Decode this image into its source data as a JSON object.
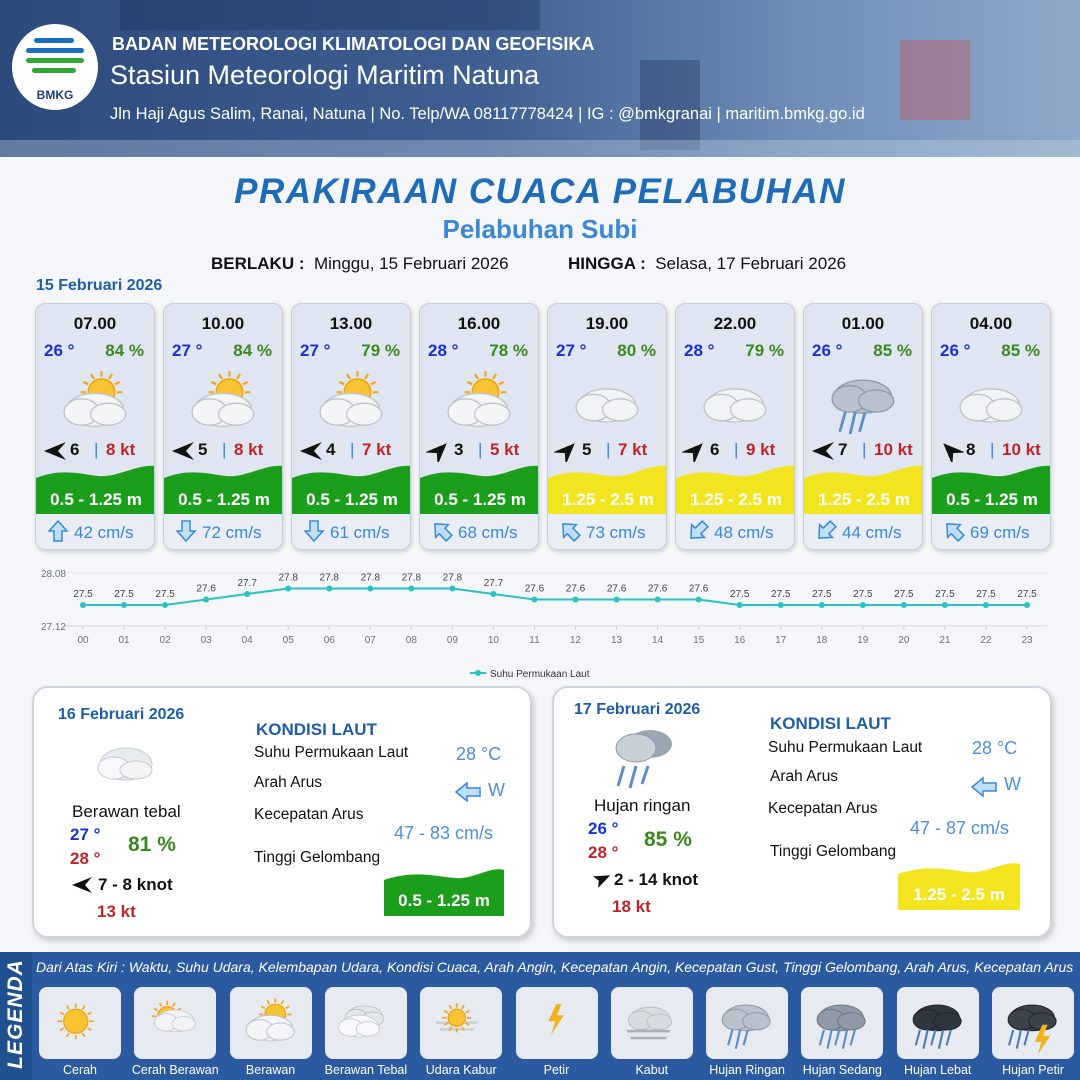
{
  "header": {
    "logo_text": "BMKG",
    "org": "BADAN METEOROLOGI KLIMATOLOGI DAN GEOFISIKA",
    "station": "Stasiun Meteorologi Maritim Natuna",
    "address": "Jln Haji Agus Salim, Ranai, Natuna  | No. Telp/WA 08117778424 | IG : @bmkgranai | maritim.bmkg.go.id"
  },
  "title": "PRAKIRAAN CUACA PELABUHAN",
  "subtitle": "Pelabuhan Subi",
  "valid": {
    "from_label": "BERLAKU :",
    "from": "Minggu, 15 Februari 2026",
    "until_label": "HINGGA :",
    "until": "Selasa, 17 Februari 2026"
  },
  "day1_label": "15 Februari 2026",
  "colors": {
    "temp": "#1833d8",
    "humidity": "#3a8a1f",
    "gust": "#c0242a",
    "wave_green": "#1b9e1b",
    "wave_yellow": "#f2e51f",
    "current": "#3a87d6"
  },
  "cards": [
    {
      "time": "07.00",
      "temp": "26 °",
      "humidity": "84 %",
      "icon": "cloudy-sunny-icon",
      "wind_dir_icon": "arrow-west-icon",
      "wind": "6",
      "gust": "8 kt",
      "wave": "0.5 - 1.25 m",
      "wave_level": "green",
      "current_dir_icon": "arrow-north-icon",
      "current": "42 cm/s"
    },
    {
      "time": "10.00",
      "temp": "27 °",
      "humidity": "84 %",
      "icon": "cloudy-sunny-icon",
      "wind_dir_icon": "arrow-west-icon",
      "wind": "5",
      "gust": "8 kt",
      "wave": "0.5 - 1.25 m",
      "wave_level": "green",
      "current_dir_icon": "arrow-south-icon",
      "current": "72 cm/s"
    },
    {
      "time": "13.00",
      "temp": "27 °",
      "humidity": "79 %",
      "icon": "cloudy-sunny-icon",
      "wind_dir_icon": "arrow-west-icon",
      "wind": "4",
      "gust": "7 kt",
      "wave": "0.5 - 1.25 m",
      "wave_level": "green",
      "current_dir_icon": "arrow-south-icon",
      "current": "61 cm/s"
    },
    {
      "time": "16.00",
      "temp": "28 °",
      "humidity": "78 %",
      "icon": "cloudy-sunny-icon",
      "wind_dir_icon": "arrow-northeast-icon",
      "wind": "3",
      "gust": "5 kt",
      "wave": "0.5 - 1.25 m",
      "wave_level": "green",
      "current_dir_icon": "arrow-northwest-icon",
      "current": "68 cm/s"
    },
    {
      "time": "19.00",
      "temp": "27 °",
      "humidity": "80 %",
      "icon": "cloudy-icon",
      "wind_dir_icon": "arrow-northeast-icon",
      "wind": "5",
      "gust": "7 kt",
      "wave": "1.25 - 2.5 m",
      "wave_level": "yellow",
      "current_dir_icon": "arrow-northwest-icon",
      "current": "73 cm/s"
    },
    {
      "time": "22.00",
      "temp": "28 °",
      "humidity": "79 %",
      "icon": "cloudy-icon",
      "wind_dir_icon": "arrow-northeast-icon",
      "wind": "6",
      "gust": "9 kt",
      "wave": "1.25 - 2.5 m",
      "wave_level": "yellow",
      "current_dir_icon": "arrow-southwest-icon",
      "current": "48 cm/s"
    },
    {
      "time": "01.00",
      "temp": "26 °",
      "humidity": "85 %",
      "icon": "light-rain-icon",
      "wind_dir_icon": "arrow-west-icon",
      "wind": "7",
      "gust": "10 kt",
      "wave": "1.25 - 2.5 m",
      "wave_level": "yellow",
      "current_dir_icon": "arrow-southwest-icon",
      "current": "44 cm/s"
    },
    {
      "time": "04.00",
      "temp": "26 °",
      "humidity": "85 %",
      "icon": "cloudy-icon",
      "wind_dir_icon": "arrow-northwest-icon",
      "wind": "8",
      "gust": "10 kt",
      "wave": "0.5 - 1.25 m",
      "wave_level": "green",
      "current_dir_icon": "arrow-northwest-icon",
      "current": "69 cm/s"
    }
  ],
  "chart_data": {
    "type": "line",
    "x": [
      "00",
      "01",
      "02",
      "03",
      "04",
      "05",
      "06",
      "07",
      "08",
      "09",
      "10",
      "11",
      "12",
      "13",
      "14",
      "15",
      "16",
      "17",
      "18",
      "19",
      "20",
      "21",
      "22",
      "23"
    ],
    "series": [
      {
        "name": "Suhu Permukaan Laut",
        "values": [
          27.5,
          27.5,
          27.5,
          27.6,
          27.7,
          27.8,
          27.8,
          27.8,
          27.8,
          27.8,
          27.7,
          27.6,
          27.6,
          27.6,
          27.6,
          27.6,
          27.5,
          27.5,
          27.5,
          27.5,
          27.5,
          27.5,
          27.5,
          27.5
        ]
      }
    ],
    "ylim": [
      27.12,
      28.08
    ],
    "y_ticks": [
      "28.08",
      "27.12"
    ],
    "legend_position": "bottom",
    "grid": true,
    "color": "#2bc2c2"
  },
  "day2": {
    "date": "16 Februari 2026",
    "condition": "Berawan tebal",
    "temp_min": "27 °",
    "temp_max": "28 °",
    "humidity": "81 %",
    "wind": "7  - 8 knot",
    "gust": "13 kt",
    "sea_title": "KONDISI LAUT",
    "sst_label": "Suhu Permukaan Laut",
    "sst": "28 °C",
    "current_dir_label": "Arah Arus",
    "current_dir": "W",
    "current_speed_label": "Kecepatan Arus",
    "current_speed": "47 - 83 cm/s",
    "wave_label": "Tinggi Gelombang",
    "wave": "0.5 - 1.25 m",
    "wave_level": "green"
  },
  "day3": {
    "date": "17 Februari 2026",
    "condition": "Hujan ringan",
    "temp_min": "26 °",
    "temp_max": "28 °",
    "humidity": "85 %",
    "wind": "2  - 14 knot",
    "gust": "18 kt",
    "sea_title": "KONDISI LAUT",
    "sst_label": "Suhu Permukaan Laut",
    "sst": "28 °C",
    "current_dir_label": "Arah Arus",
    "current_dir": "W",
    "current_speed_label": "Kecepatan Arus",
    "current_speed": "47 - 87 cm/s",
    "wave_label": "Tinggi Gelombang",
    "wave": "1.25 - 2.5 m",
    "wave_level": "yellow"
  },
  "legend": {
    "title": "LEGENDA",
    "description": "Dari Atas Kiri : Waktu, Suhu Udara, Kelembapan Udara, Kondisi Cuaca, Arah Angin, Kecepatan Angin, Kecepatan Gust, Tinggi Gelombang, Arah Arus, Kecepatan Arus",
    "items": [
      {
        "label": "Cerah",
        "icon": "sunny-icon"
      },
      {
        "label": "Cerah Berawan",
        "icon": "partly-cloudy-icon"
      },
      {
        "label": "Berawan",
        "icon": "cloudy-sunny-icon"
      },
      {
        "label": "Berawan Tebal",
        "icon": "overcast-icon"
      },
      {
        "label": "Udara Kabur",
        "icon": "haze-icon"
      },
      {
        "label": "Petir",
        "icon": "lightning-icon"
      },
      {
        "label": "Kabut",
        "icon": "fog-icon"
      },
      {
        "label": "Hujan Ringan",
        "icon": "light-rain-icon"
      },
      {
        "label": "Hujan Sedang",
        "icon": "moderate-rain-icon"
      },
      {
        "label": "Hujan Lebat",
        "icon": "heavy-rain-icon"
      },
      {
        "label": "Hujan Petir",
        "icon": "thunderstorm-icon"
      }
    ]
  }
}
